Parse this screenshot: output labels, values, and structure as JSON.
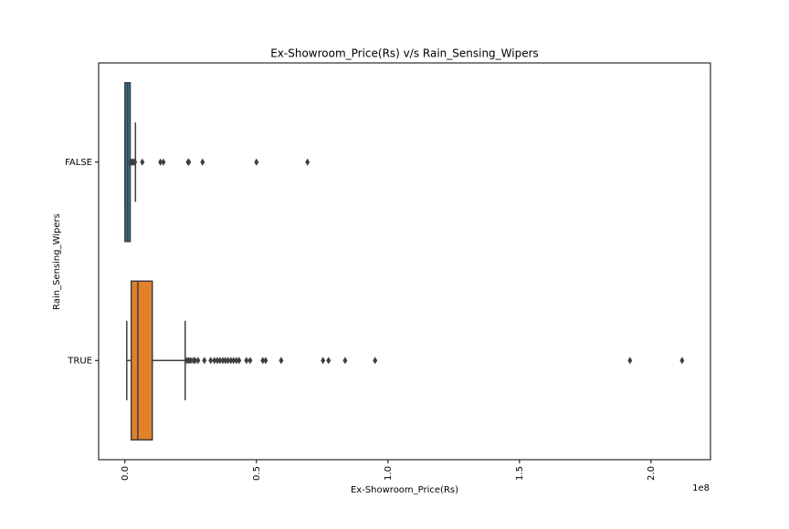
{
  "chart_data": {
    "type": "box",
    "orientation": "horizontal",
    "title": "Ex-Showroom_Price(Rs) v/s Rain_Sensing_Wipers",
    "x_label": "Ex-Showroom_Price(Rs)",
    "y_label": "Rain_Sensing_Wipers",
    "x_offset_label": "1e8",
    "categories": [
      "FALSE",
      "TRUE"
    ],
    "boxes": [
      {
        "whislo": 0.0,
        "q1": 0.0,
        "med": 0.01,
        "q3": 0.02,
        "whishi": 0.04,
        "color": "#3274a1",
        "fliers": [
          0.021,
          0.024,
          0.028,
          0.031,
          0.035,
          0.038,
          0.066,
          0.135,
          0.146,
          0.24,
          0.243,
          0.295,
          0.5,
          0.694
        ]
      },
      {
        "whislo": 0.007,
        "q1": 0.024,
        "med": 0.049,
        "q3": 0.104,
        "whishi": 0.229,
        "color": "#e1812c",
        "fliers": [
          0.236,
          0.243,
          0.25,
          0.26,
          0.267,
          0.278,
          0.302,
          0.326,
          0.34,
          0.351,
          0.361,
          0.372,
          0.382,
          0.392,
          0.403,
          0.413,
          0.424,
          0.434,
          0.462,
          0.476,
          0.524,
          0.535,
          0.594,
          0.753,
          0.774,
          0.837,
          0.951,
          1.92,
          2.118
        ]
      }
    ],
    "xlim": [
      -0.1,
      2.226
    ],
    "xticks": [
      {
        "value": 0,
        "label": "0.0"
      },
      0.5,
      {
        "value": 1,
        "label": "1.0"
      },
      1.5,
      {
        "value": 2,
        "label": "2.0"
      }
    ]
  }
}
